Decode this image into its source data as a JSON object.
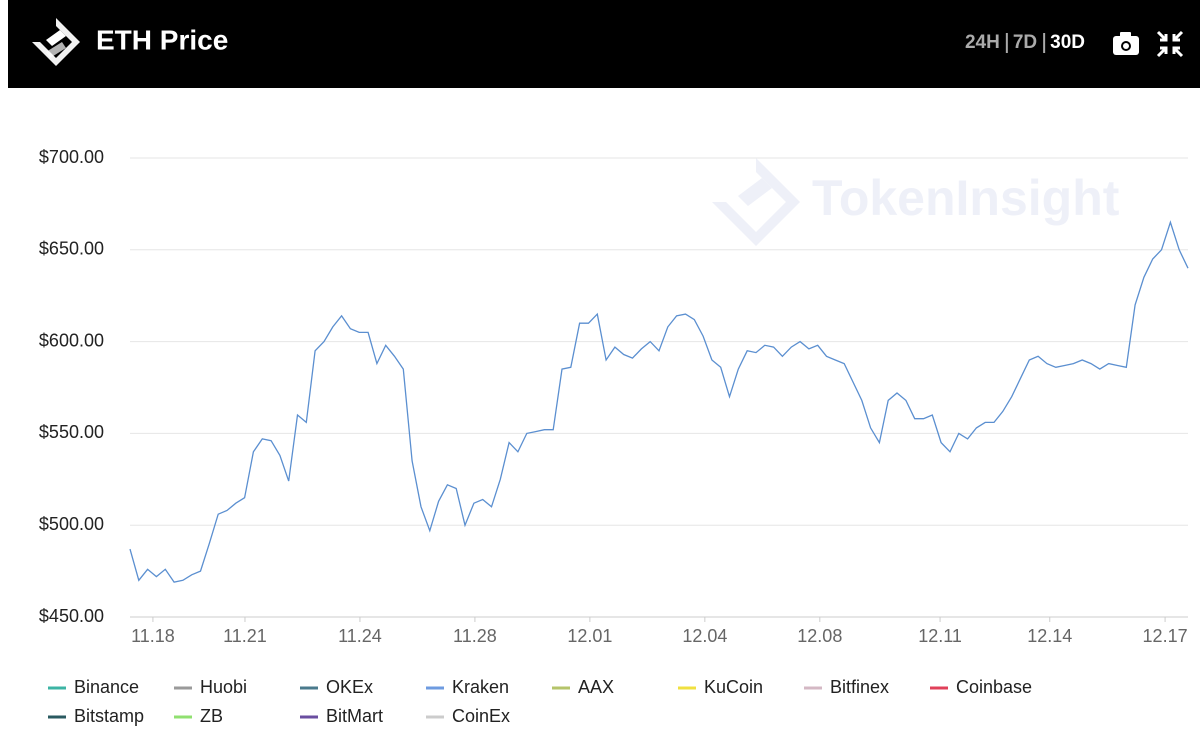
{
  "header": {
    "title": "ETH Price",
    "range_options": [
      "24H",
      "7D",
      "30D"
    ],
    "active_range_index": 2
  },
  "chart_data": {
    "type": "line",
    "watermark": "TokenInsight",
    "x": [
      0,
      0.25,
      0.5,
      0.75,
      1,
      1.25,
      1.5,
      1.75,
      2,
      2.25,
      2.5,
      2.75,
      3,
      3.25,
      3.5,
      3.75,
      4,
      4.25,
      4.5,
      4.75,
      5,
      5.25,
      5.5,
      5.75,
      6,
      6.25,
      6.5,
      6.75,
      7,
      7.25,
      7.5,
      7.75,
      8,
      8.25,
      8.5,
      8.75,
      9,
      9.25,
      9.5,
      9.75,
      10,
      10.25,
      10.5,
      10.75,
      11,
      11.25,
      11.5,
      11.75,
      12,
      12.25,
      12.5,
      12.75,
      13,
      13.25,
      13.5,
      13.75,
      14,
      14.25,
      14.5,
      14.75,
      15,
      15.25,
      15.5,
      15.75,
      16,
      16.25,
      16.5,
      16.75,
      17,
      17.25,
      17.5,
      17.75,
      18,
      18.25,
      18.5,
      18.75,
      19,
      19.25,
      19.5,
      19.75,
      20,
      20.25,
      20.5,
      20.75,
      21,
      21.25,
      21.5,
      21.75,
      22,
      22.25,
      22.5,
      22.75,
      23,
      23.25,
      23.5,
      23.75,
      24,
      24.25,
      24.5,
      24.75,
      25,
      25.25,
      25.5,
      25.75,
      26,
      26.25,
      26.5,
      26.75,
      27,
      27.25,
      27.5,
      27.75,
      28,
      28.25,
      28.5,
      28.75,
      29,
      29.25,
      29.5,
      29.75,
      30
    ],
    "xlim": [
      0,
      30
    ],
    "xticks": [
      {
        "value": 0.65,
        "label": "11.18"
      },
      {
        "value": 3.26,
        "label": "11.21"
      },
      {
        "value": 6.52,
        "label": "11.24"
      },
      {
        "value": 9.78,
        "label": "11.28"
      },
      {
        "value": 13.04,
        "label": "12.01"
      },
      {
        "value": 16.3,
        "label": "12.04"
      },
      {
        "value": 19.56,
        "label": "12.08"
      },
      {
        "value": 22.97,
        "label": "12.11"
      },
      {
        "value": 26.08,
        "label": "12.14"
      },
      {
        "value": 29.35,
        "label": "12.17"
      }
    ],
    "ylim": [
      450,
      700
    ],
    "yticks": [
      {
        "value": 450,
        "label": "$450.00"
      },
      {
        "value": 500,
        "label": "$500.00"
      },
      {
        "value": 550,
        "label": "$550.00"
      },
      {
        "value": 600,
        "label": "$600.00"
      },
      {
        "value": 650,
        "label": "$650.00"
      },
      {
        "value": 700,
        "label": "$700.00"
      }
    ],
    "grid": true,
    "line_color": "#5b8fd0",
    "series": [
      {
        "name": "Binance",
        "color": "#3cb4a4"
      },
      {
        "name": "Huobi",
        "color": "#9a9a9a"
      },
      {
        "name": "OKEx",
        "color": "#4a7a8c"
      },
      {
        "name": "Kraken",
        "color": "#6e9be0",
        "values": [
          487,
          470,
          476,
          472,
          476,
          469,
          470,
          473,
          475,
          490,
          506,
          508,
          512,
          515,
          540,
          547,
          546,
          538,
          524,
          560,
          556,
          595,
          600,
          608,
          614,
          607,
          605,
          605,
          588,
          598,
          592,
          585,
          535,
          510,
          497,
          513,
          522,
          520,
          500,
          512,
          514,
          510,
          525,
          545,
          540,
          550,
          551,
          552,
          552,
          585,
          586,
          610,
          610,
          615,
          590,
          597,
          593,
          591,
          596,
          600,
          595,
          608,
          614,
          615,
          612,
          603,
          590,
          586,
          570,
          585,
          595,
          594,
          598,
          597,
          592,
          597,
          600,
          596,
          598,
          592,
          590,
          588,
          578,
          568,
          553,
          545,
          568,
          572,
          568,
          558,
          558,
          560,
          545,
          540,
          550,
          547,
          553,
          556,
          556,
          562,
          570,
          580,
          590,
          592,
          588,
          586,
          587,
          588,
          590,
          588,
          585,
          588,
          587,
          586,
          620,
          635,
          645,
          650,
          665,
          650,
          640
        ]
      },
      {
        "name": "AAX",
        "color": "#b5c46a"
      },
      {
        "name": "KuCoin",
        "color": "#f0e040"
      },
      {
        "name": "Bitfinex",
        "color": "#d4b8c4"
      },
      {
        "name": "Coinbase",
        "color": "#e0405a"
      },
      {
        "name": "Bitstamp",
        "color": "#2a5a60"
      },
      {
        "name": "ZB",
        "color": "#90e070"
      },
      {
        "name": "BitMart",
        "color": "#6a4ea0"
      },
      {
        "name": "CoinEx",
        "color": "#cccccc",
        "hidden": true
      }
    ]
  }
}
